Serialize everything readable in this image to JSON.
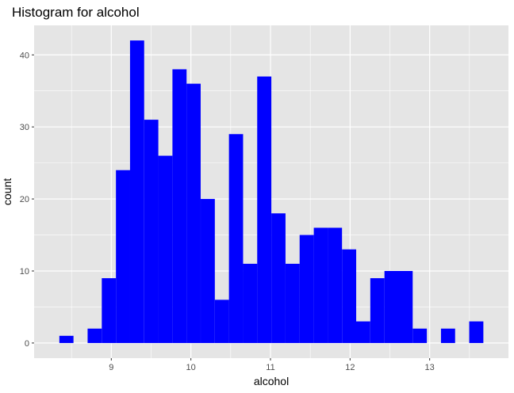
{
  "chart_data": {
    "type": "bar",
    "title": "Histogram for alcohol",
    "xlabel": "alcohol",
    "ylabel": "count",
    "bin_width": 0.1776,
    "bins": [
      {
        "x": 8.436,
        "count": 1
      },
      {
        "x": 8.614,
        "count": 0
      },
      {
        "x": 8.791,
        "count": 2
      },
      {
        "x": 8.969,
        "count": 9
      },
      {
        "x": 9.147,
        "count": 24
      },
      {
        "x": 9.324,
        "count": 42
      },
      {
        "x": 9.502,
        "count": 31
      },
      {
        "x": 9.679,
        "count": 26
      },
      {
        "x": 9.857,
        "count": 38
      },
      {
        "x": 10.034,
        "count": 36
      },
      {
        "x": 10.212,
        "count": 20
      },
      {
        "x": 10.39,
        "count": 6
      },
      {
        "x": 10.567,
        "count": 29
      },
      {
        "x": 10.745,
        "count": 11
      },
      {
        "x": 10.922,
        "count": 37
      },
      {
        "x": 11.1,
        "count": 18
      },
      {
        "x": 11.278,
        "count": 11
      },
      {
        "x": 11.455,
        "count": 15
      },
      {
        "x": 11.633,
        "count": 16
      },
      {
        "x": 11.81,
        "count": 16
      },
      {
        "x": 11.988,
        "count": 13
      },
      {
        "x": 12.165,
        "count": 3
      },
      {
        "x": 12.343,
        "count": 9
      },
      {
        "x": 12.521,
        "count": 10
      },
      {
        "x": 12.698,
        "count": 10
      },
      {
        "x": 12.876,
        "count": 2
      },
      {
        "x": 13.053,
        "count": 0
      },
      {
        "x": 13.231,
        "count": 2
      },
      {
        "x": 13.408,
        "count": 0
      },
      {
        "x": 13.586,
        "count": 3
      }
    ],
    "xlim": [
      8.03,
      13.99
    ],
    "ylim": [
      -2.1,
      44.1
    ],
    "x_ticks": [
      9,
      10,
      11,
      12,
      13
    ],
    "y_ticks": [
      0,
      10,
      20,
      30,
      40
    ],
    "grid": true,
    "bar_color": "#0000ff",
    "panel_color": "#e5e5e5",
    "grid_color": "#ffffff"
  }
}
